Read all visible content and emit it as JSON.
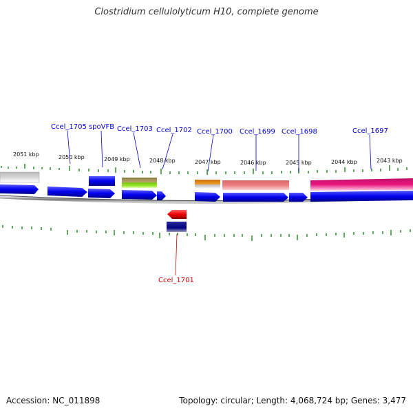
{
  "title": "Clostridium cellulolyticum H10, complete genome",
  "footer": {
    "accession": "Accession: NC_011898",
    "topology": "Topology: circular; Length: 4,068,724 bp; Genes: 3,477"
  },
  "scale_labels": [
    "2051 kbp",
    "2050 kbp",
    "2049 kbp",
    "2048 kbp",
    "2047 kbp",
    "2046 kbp",
    "2045 kbp",
    "2044 kbp",
    "2043 kbp"
  ],
  "gene_labels_top": [
    "Ccel_1705",
    "spoVFB",
    "Ccel_1703",
    "Ccel_1702",
    "Ccel_1700",
    "Ccel_1699",
    "Ccel_1698",
    "Ccel_1697"
  ],
  "gene_labels_bottom": [
    "Ccel_1701"
  ],
  "colors": {
    "forward_gene": "#0000ee",
    "reverse_gene": "#ee0000",
    "reverse_product": "#000080",
    "forward_label": "#0000cc",
    "reverse_label": "#cc0000",
    "tick": "#2a8a2a",
    "backbone": "#777777",
    "pink_feature": "#e8157f",
    "salmon_feature": "#ee7f80",
    "orange_feature": "#ee8a00",
    "olive_feature": "#a8945a",
    "lime_feature": "#9ae62a"
  }
}
